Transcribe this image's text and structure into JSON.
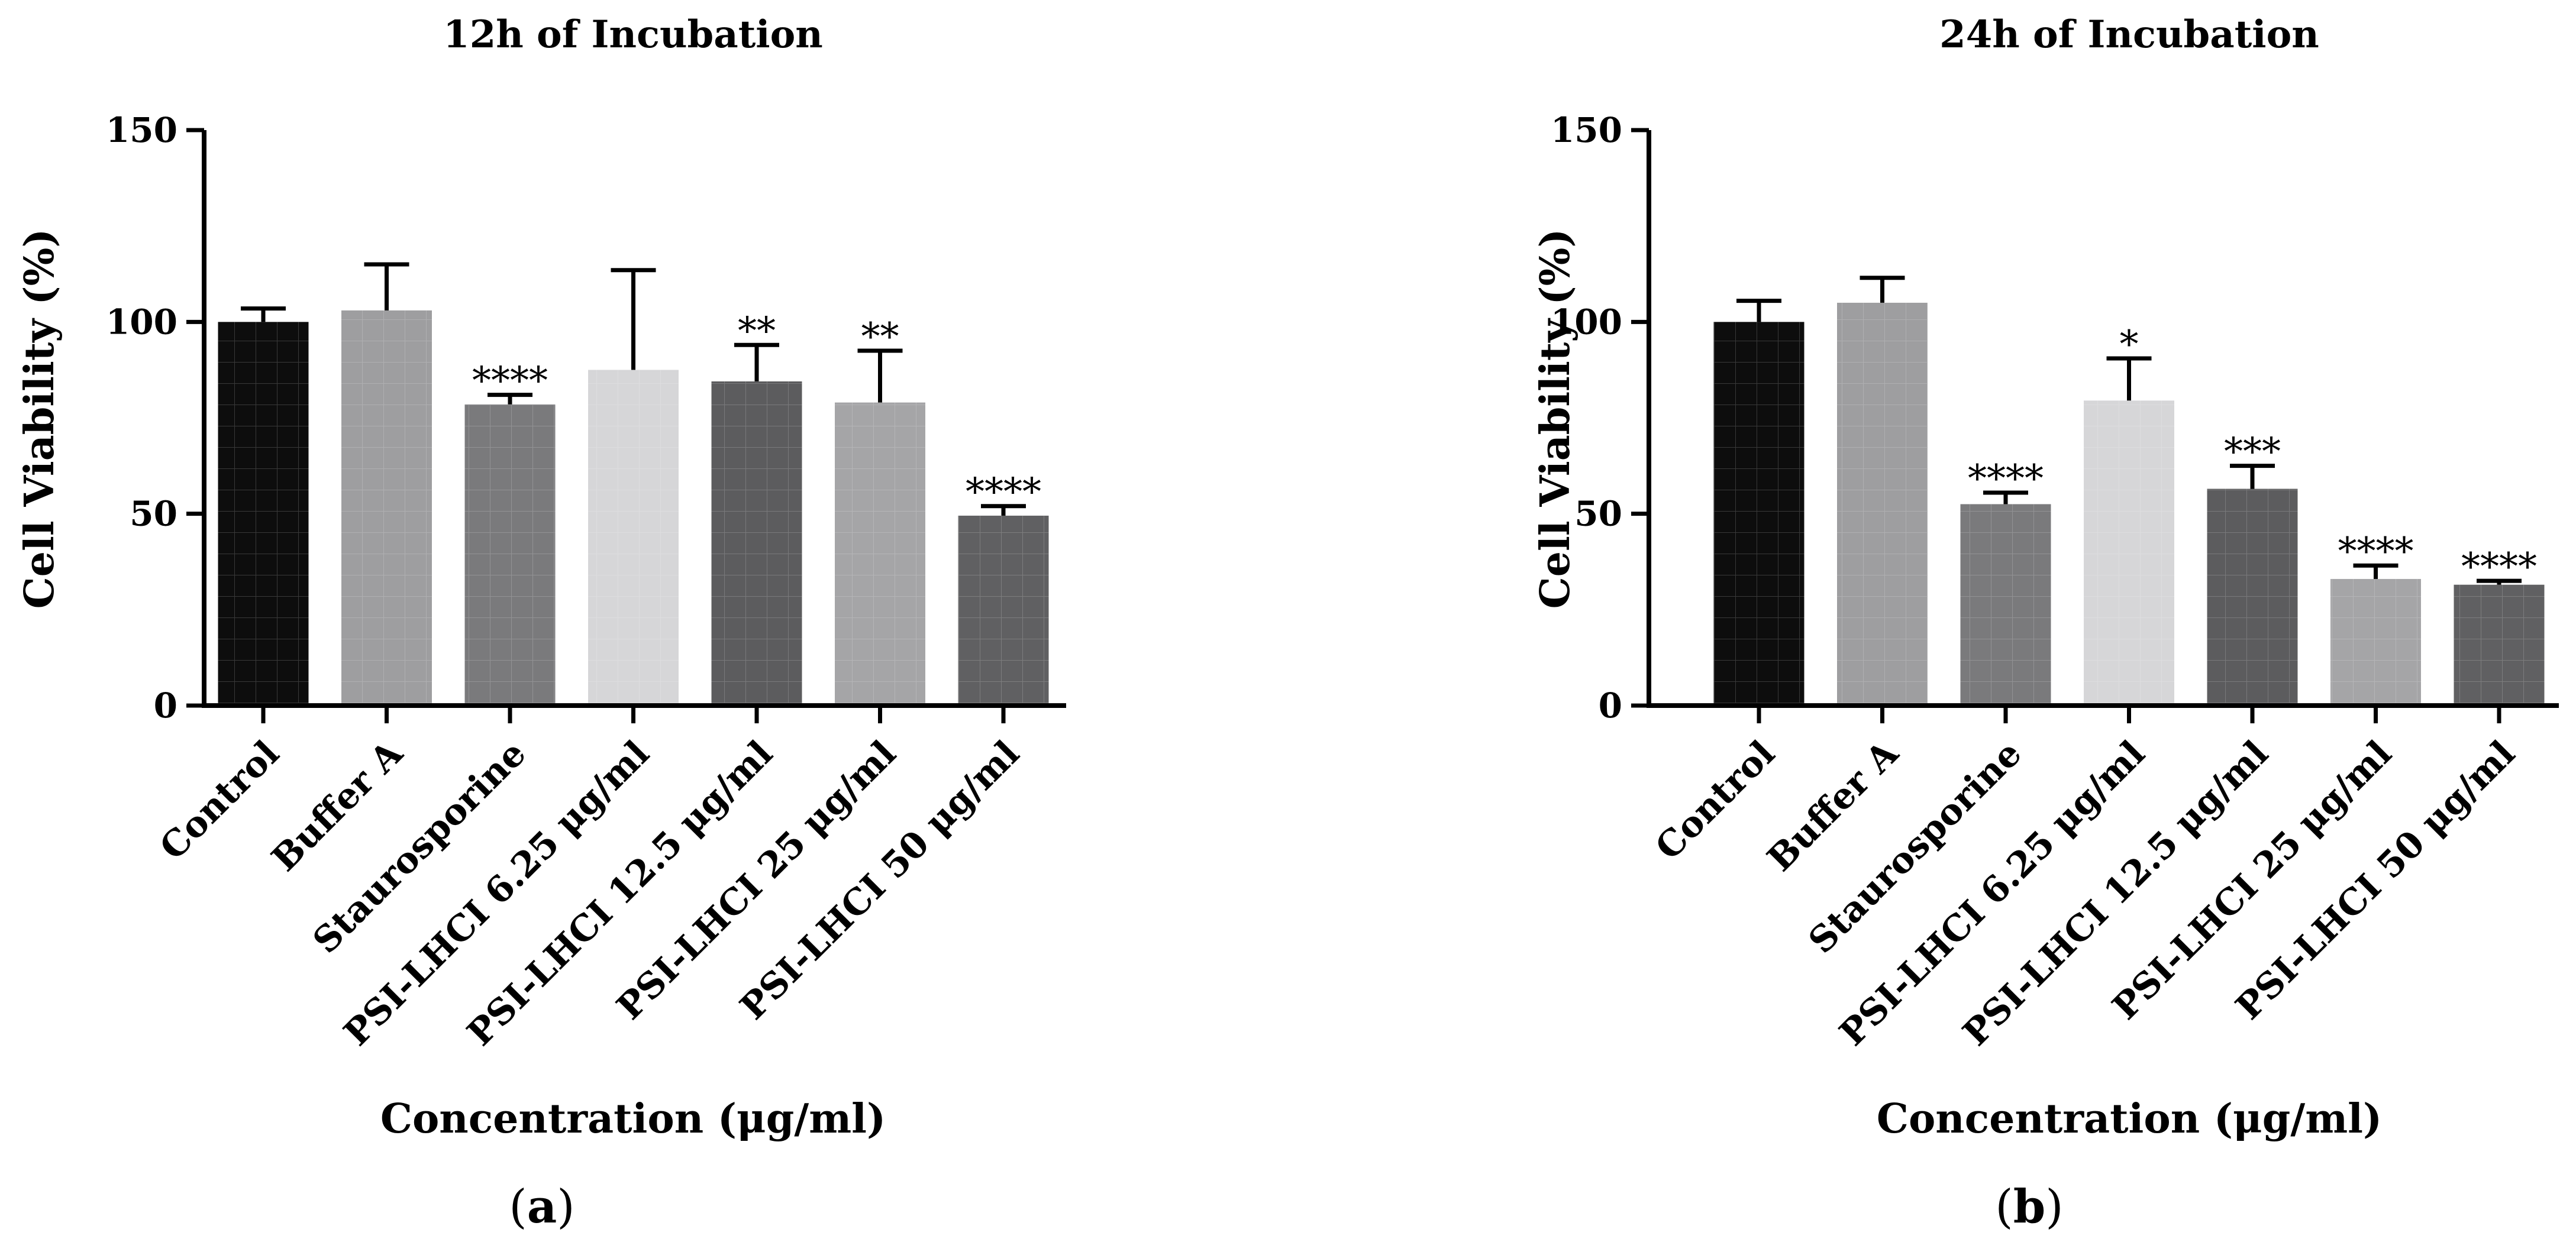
{
  "chart_data": [
    {
      "type": "bar",
      "panel_label": "a",
      "title": "12h of Incubation",
      "xlabel": "Concentration (μg/ml)",
      "ylabel": "Cell Viability (%)",
      "ylim": [
        0,
        150
      ],
      "yticks": [
        0,
        50,
        100,
        150
      ],
      "categories": [
        "Control",
        "Buffer A",
        "Staurosporine",
        "PSI-LHCI 6.25 μg/ml",
        "PSI-LHCI 12.5 μg/ml",
        "PSI-LHCI 25 μg/ml",
        "PSI-LHCI 50 μg/ml"
      ],
      "values": [
        100,
        103,
        78.5,
        87.5,
        84.5,
        79,
        49.5
      ],
      "errors": [
        3.5,
        12,
        2.5,
        26,
        9.5,
        13.5,
        2.5
      ],
      "significance": [
        "",
        "",
        "****",
        "",
        "**",
        "**",
        "****"
      ],
      "colors": [
        "#0d0d0d",
        "#9e9ea0",
        "#7a7a7c",
        "#d6d6d8",
        "#5c5c5e",
        "#a5a5a7",
        "#606062"
      ]
    },
    {
      "type": "bar",
      "panel_label": "b",
      "title": "24h of Incubation",
      "xlabel": "Concentration (μg/ml)",
      "ylabel": "Cell Viability (%)",
      "ylim": [
        0,
        150
      ],
      "yticks": [
        0,
        50,
        100,
        150
      ],
      "categories": [
        "Control",
        "Buffer A",
        "Staurosporine",
        "PSI-LHCI 6.25 μg/ml",
        "PSI-LHCI 12.5 μg/ml",
        "PSI-LHCI 25 μg/ml",
        "PSI-LHCI 50 μg/ml"
      ],
      "values": [
        100,
        105,
        52.5,
        79.5,
        56.5,
        33,
        31.5
      ],
      "errors": [
        5.5,
        6.5,
        3,
        11,
        6,
        3.5,
        1
      ],
      "significance": [
        "",
        "",
        "****",
        "*",
        "***",
        "****",
        "****"
      ],
      "colors": [
        "#0d0d0d",
        "#9e9ea0",
        "#7a7a7c",
        "#d6d6d8",
        "#5c5c5e",
        "#a5a5a7",
        "#606062"
      ]
    }
  ],
  "captions": [
    "a",
    "b"
  ]
}
